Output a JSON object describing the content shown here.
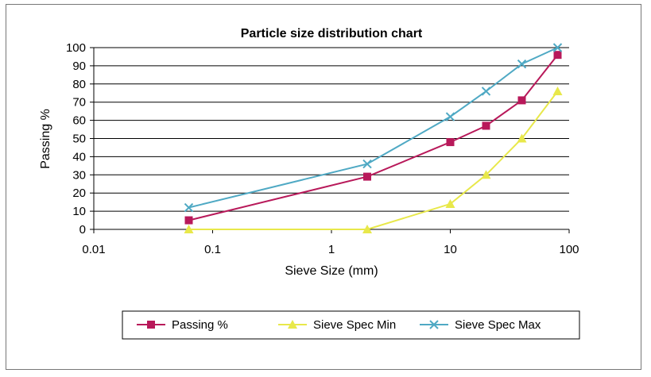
{
  "chart_data": {
    "type": "line",
    "title": "Particle size distribution chart",
    "xlabel": "Sieve Size (mm)",
    "ylabel": "Passing %",
    "x_scale": "log",
    "xlim": [
      0.01,
      100
    ],
    "ylim": [
      0,
      100
    ],
    "x_ticks": [
      "0.01",
      "0.1",
      "1",
      "10",
      "100"
    ],
    "y_ticks": [
      "0",
      "10",
      "20",
      "30",
      "40",
      "50",
      "60",
      "70",
      "80",
      "90",
      "100"
    ],
    "grid": "horizontal",
    "legend_position": "bottom",
    "series": [
      {
        "name": "Passing %",
        "color": "#b8195a",
        "marker": "square",
        "x": [
          0.063,
          2,
          10,
          20,
          40,
          80
        ],
        "y": [
          5,
          29,
          48,
          57,
          71,
          96
        ]
      },
      {
        "name": "Sieve Spec Min",
        "color": "#e8e84a",
        "marker": "triangle",
        "x": [
          0.063,
          2,
          10,
          20,
          40,
          80
        ],
        "y": [
          0,
          0,
          14,
          30,
          50,
          76
        ]
      },
      {
        "name": "Sieve Spec Max",
        "color": "#4fa9c4",
        "marker": "x",
        "x": [
          0.063,
          2,
          10,
          20,
          40,
          80
        ],
        "y": [
          12,
          36,
          62,
          76,
          91,
          100
        ]
      }
    ]
  }
}
